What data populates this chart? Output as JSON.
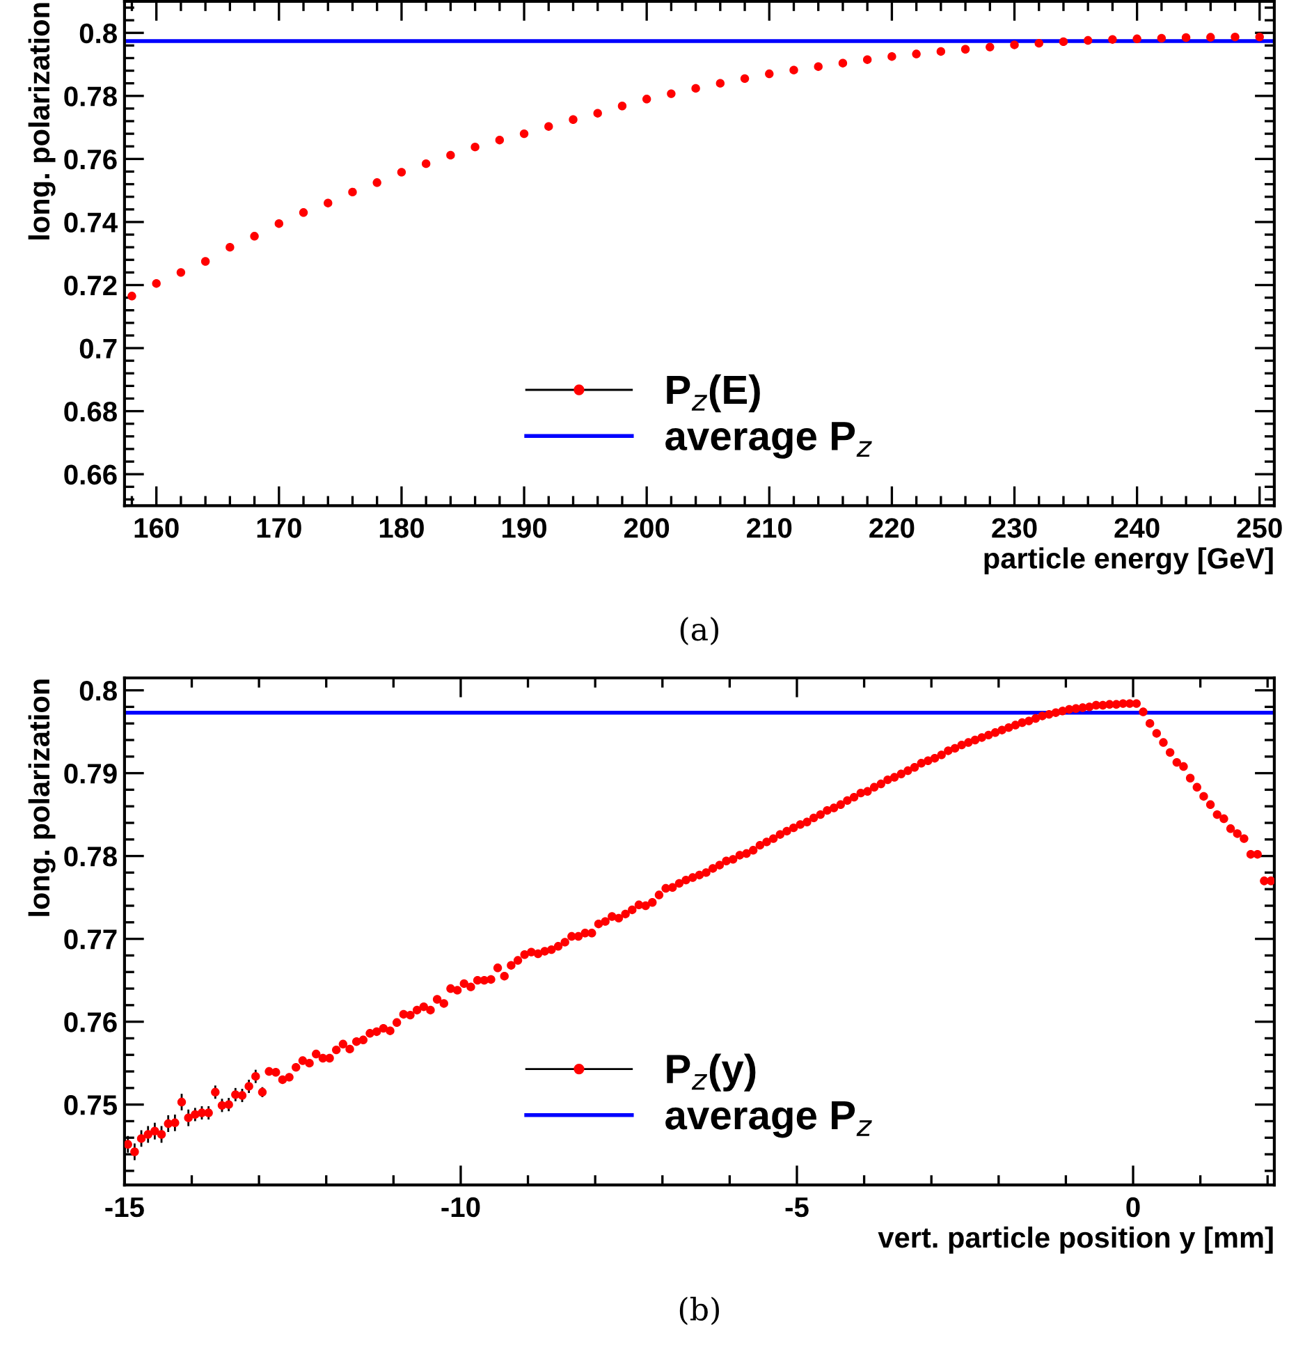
{
  "chart_data": [
    {
      "type": "scatter",
      "xlabel": "particle energy [GeV]",
      "ylabel": "long. polarization",
      "xlim": [
        157.4,
        251.2
      ],
      "ylim": [
        0.65,
        0.81
      ],
      "xticks": [
        160,
        170,
        180,
        190,
        200,
        210,
        220,
        230,
        240,
        250
      ],
      "yticks": [
        0.66,
        0.68,
        0.7,
        0.72,
        0.74,
        0.76,
        0.78,
        0.8
      ],
      "marker": "circle",
      "legend": "bottom",
      "annotations": [
        "(a)"
      ],
      "series": [
        {
          "name": "P$_{z}$(E)",
          "color": "#ff0000",
          "x": [
            158,
            160,
            162,
            164,
            166,
            168,
            170,
            172,
            174,
            176,
            178,
            180,
            182,
            184,
            186,
            188,
            190,
            192,
            194,
            196,
            198,
            200,
            202,
            204,
            206,
            208,
            210,
            212,
            214,
            216,
            218,
            220,
            222,
            224,
            226,
            228,
            230,
            232,
            234,
            236,
            238,
            240,
            242,
            244,
            246,
            248,
            250
          ],
          "values": [
            0.7165,
            0.7205,
            0.724,
            0.7275,
            0.732,
            0.7355,
            0.7395,
            0.743,
            0.746,
            0.7495,
            0.7525,
            0.7558,
            0.7585,
            0.7612,
            0.7638,
            0.766,
            0.768,
            0.7703,
            0.7725,
            0.7745,
            0.7768,
            0.779,
            0.7807,
            0.7824,
            0.784,
            0.7855,
            0.787,
            0.7882,
            0.7893,
            0.7904,
            0.7915,
            0.7925,
            0.7933,
            0.7941,
            0.7948,
            0.7955,
            0.7962,
            0.7967,
            0.7972,
            0.7976,
            0.7979,
            0.7981,
            0.7983,
            0.7985,
            0.7986,
            0.7987,
            0.7987
          ]
        }
      ],
      "ref_lines": [
        {
          "axis": "y",
          "value": 0.7974,
          "label": "average P$_{z}$",
          "color": "#0000ff"
        }
      ]
    },
    {
      "type": "scatter",
      "xlabel": "vert. particle position y [mm]",
      "ylabel": "long. polarization",
      "xlim": [
        -15,
        2.1
      ],
      "ylim": [
        0.7403,
        0.8015
      ],
      "xticks": [
        -15,
        -10,
        -5,
        0
      ],
      "yticks": [
        0.75,
        0.76,
        0.77,
        0.78,
        0.79,
        0.8
      ],
      "marker": "circle",
      "legend": "bottom",
      "annotations": [
        "(b)"
      ],
      "series": [
        {
          "name": "P$_{z}$(y)",
          "color": "#ff0000",
          "x": [
            -14.95,
            -14.85,
            -14.75,
            -14.65,
            -14.55,
            -14.45,
            -14.35,
            -14.25,
            -14.15,
            -14.05,
            -13.95,
            -13.85,
            -13.75,
            -13.65,
            -13.55,
            -13.45,
            -13.35,
            -13.25,
            -13.15,
            -13.05,
            -12.95,
            -12.85,
            -12.75,
            -12.65,
            -12.55,
            -12.45,
            -12.35,
            -12.25,
            -12.15,
            -12.05,
            -11.95,
            -11.85,
            -11.75,
            -11.65,
            -11.55,
            -11.45,
            -11.35,
            -11.25,
            -11.15,
            -11.05,
            -10.95,
            -10.85,
            -10.75,
            -10.65,
            -10.55,
            -10.45,
            -10.35,
            -10.25,
            -10.15,
            -10.05,
            -9.95,
            -9.85,
            -9.75,
            -9.65,
            -9.55,
            -9.45,
            -9.35,
            -9.25,
            -9.15,
            -9.05,
            -8.95,
            -8.85,
            -8.75,
            -8.65,
            -8.55,
            -8.45,
            -8.35,
            -8.25,
            -8.15,
            -8.05,
            -7.95,
            -7.85,
            -7.75,
            -7.65,
            -7.55,
            -7.45,
            -7.35,
            -7.25,
            -7.15,
            -7.05,
            -6.95,
            -6.85,
            -6.75,
            -6.65,
            -6.55,
            -6.45,
            -6.35,
            -6.25,
            -6.15,
            -6.05,
            -5.95,
            -5.85,
            -5.75,
            -5.65,
            -5.55,
            -5.45,
            -5.35,
            -5.25,
            -5.15,
            -5.05,
            -4.95,
            -4.85,
            -4.75,
            -4.65,
            -4.55,
            -4.45,
            -4.35,
            -4.25,
            -4.15,
            -4.05,
            -3.95,
            -3.85,
            -3.75,
            -3.65,
            -3.55,
            -3.45,
            -3.35,
            -3.25,
            -3.15,
            -3.05,
            -2.95,
            -2.85,
            -2.75,
            -2.65,
            -2.55,
            -2.45,
            -2.35,
            -2.25,
            -2.15,
            -2.05,
            -1.95,
            -1.85,
            -1.75,
            -1.65,
            -1.55,
            -1.45,
            -1.35,
            -1.25,
            -1.15,
            -1.05,
            -0.95,
            -0.85,
            -0.75,
            -0.65,
            -0.55,
            -0.45,
            -0.35,
            -0.25,
            -0.15,
            -0.05,
            0.05,
            0.15,
            0.25,
            0.35,
            0.45,
            0.55,
            0.65,
            0.75,
            0.85,
            0.95,
            1.05,
            1.15,
            1.25,
            1.35,
            1.45,
            1.55,
            1.65,
            1.75,
            1.85,
            1.95,
            2.05
          ],
          "values": [
            0.7452,
            0.7443,
            0.7459,
            0.7464,
            0.7468,
            0.7464,
            0.7477,
            0.7478,
            0.7503,
            0.7484,
            0.7488,
            0.749,
            0.749,
            0.7515,
            0.7499,
            0.75,
            0.7512,
            0.7511,
            0.7522,
            0.7534,
            0.7515,
            0.754,
            0.7539,
            0.753,
            0.7533,
            0.7545,
            0.7553,
            0.755,
            0.7561,
            0.7556,
            0.7556,
            0.7566,
            0.7573,
            0.7567,
            0.7576,
            0.7578,
            0.7586,
            0.7588,
            0.7592,
            0.7589,
            0.7599,
            0.7609,
            0.7608,
            0.7614,
            0.7618,
            0.7614,
            0.7627,
            0.7622,
            0.764,
            0.7638,
            0.7646,
            0.7642,
            0.765,
            0.765,
            0.7651,
            0.7665,
            0.7655,
            0.7668,
            0.7674,
            0.7681,
            0.7684,
            0.7682,
            0.7685,
            0.7687,
            0.7691,
            0.7696,
            0.7703,
            0.7703,
            0.7707,
            0.7707,
            0.7718,
            0.7721,
            0.7727,
            0.7725,
            0.773,
            0.7735,
            0.7741,
            0.774,
            0.7744,
            0.7753,
            0.7761,
            0.7762,
            0.7767,
            0.7771,
            0.7774,
            0.7777,
            0.778,
            0.7785,
            0.7789,
            0.7794,
            0.7796,
            0.7801,
            0.7803,
            0.7807,
            0.7813,
            0.7817,
            0.7821,
            0.7826,
            0.783,
            0.7834,
            0.7838,
            0.7841,
            0.7846,
            0.785,
            0.7855,
            0.7858,
            0.7862,
            0.7867,
            0.7871,
            0.7876,
            0.7878,
            0.7883,
            0.7887,
            0.7892,
            0.7895,
            0.7899,
            0.7903,
            0.7907,
            0.7912,
            0.7915,
            0.7918,
            0.7922,
            0.7927,
            0.793,
            0.7934,
            0.7937,
            0.794,
            0.7943,
            0.7946,
            0.7949,
            0.7952,
            0.7955,
            0.7958,
            0.7961,
            0.7963,
            0.7966,
            0.7969,
            0.7971,
            0.7973,
            0.7975,
            0.7977,
            0.7978,
            0.7979,
            0.798,
            0.7982,
            0.7982,
            0.7983,
            0.7983,
            0.7984,
            0.7984,
            0.7984,
            0.7974,
            0.796,
            0.7948,
            0.7937,
            0.7925,
            0.7913,
            0.7908,
            0.7894,
            0.7883,
            0.7872,
            0.7862,
            0.785,
            0.7845,
            0.7833,
            0.7827,
            0.7821,
            0.7802,
            0.7802,
            0.777,
            0.777
          ],
          "errors": [
            0.001,
            0.001,
            0.001,
            0.001,
            0.001,
            0.001,
            0.001,
            0.001,
            0.001,
            0.001,
            0.0008,
            0.0008,
            0.0008,
            0.0008,
            0.0008,
            0.0008,
            0.0008,
            0.0008,
            0.0008,
            0.0008,
            0.0006,
            null,
            null,
            null,
            null,
            null,
            null,
            null,
            null,
            null,
            null,
            null,
            null,
            null,
            null,
            null,
            null,
            null,
            null,
            null,
            null,
            null,
            null,
            null,
            null,
            null,
            null,
            null,
            null,
            null,
            null,
            null,
            null,
            null,
            null,
            null,
            null,
            null,
            null,
            null,
            null,
            null,
            null,
            null,
            null,
            null,
            null,
            null,
            null,
            null,
            null,
            null,
            null,
            null,
            null,
            null,
            null,
            null,
            null,
            null,
            null,
            null,
            null,
            null,
            null,
            null,
            null,
            null,
            null,
            null,
            null,
            null,
            null,
            null,
            null,
            null,
            null,
            null,
            null,
            null,
            null,
            null,
            null,
            null,
            null,
            null,
            null,
            null,
            null,
            null,
            null,
            null,
            null,
            null,
            null,
            null,
            null,
            null,
            null,
            null,
            null,
            null,
            null,
            null,
            null,
            null,
            null,
            null,
            null,
            null,
            null,
            null,
            null,
            null,
            null,
            null,
            null,
            null,
            null,
            null,
            null,
            null,
            null,
            null,
            null,
            null,
            null,
            null,
            null,
            null,
            null,
            null,
            null,
            null,
            null,
            null,
            null,
            null,
            null,
            null,
            null,
            null,
            null,
            null,
            null,
            null,
            null,
            null,
            null,
            0.0005,
            0.0005
          ]
        }
      ],
      "ref_lines": [
        {
          "axis": "y",
          "value": 0.7973,
          "label": "average P$_{z}$",
          "color": "#0000ff"
        }
      ]
    }
  ]
}
